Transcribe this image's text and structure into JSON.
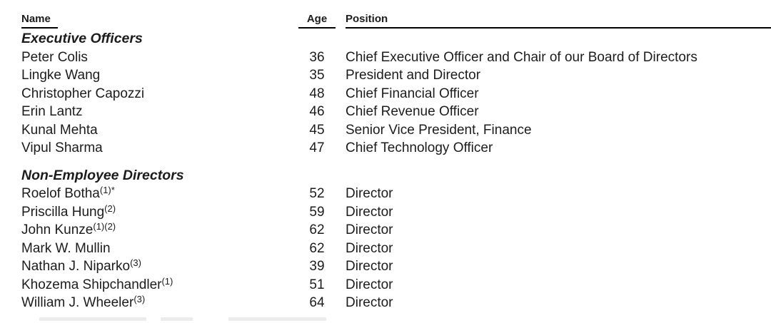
{
  "colors": {
    "text": "#1c1c1c",
    "rule": "#000000",
    "background": "#ffffff"
  },
  "table": {
    "columns": {
      "name": "Name",
      "age": "Age",
      "position": "Position"
    },
    "sections": [
      {
        "title": "Executive Officers",
        "rows": [
          {
            "name": "Peter Colis",
            "sup": "",
            "age": "36",
            "position": "Chief Executive Officer and Chair of our Board of Directors"
          },
          {
            "name": "Lingke Wang",
            "sup": "",
            "age": "35",
            "position": "President and Director"
          },
          {
            "name": "Christopher Capozzi",
            "sup": "",
            "age": "48",
            "position": "Chief Financial Officer"
          },
          {
            "name": "Erin Lantz",
            "sup": "",
            "age": "46",
            "position": "Chief Revenue Officer"
          },
          {
            "name": "Kunal Mehta",
            "sup": "",
            "age": "45",
            "position": "Senior Vice President, Finance"
          },
          {
            "name": "Vipul Sharma",
            "sup": "",
            "age": "47",
            "position": "Chief Technology Officer"
          }
        ]
      },
      {
        "title": "Non-Employee Directors",
        "rows": [
          {
            "name": "Roelof Botha",
            "sup": "(1)*",
            "age": "52",
            "position": "Director"
          },
          {
            "name": "Priscilla Hung",
            "sup": "(2)",
            "age": "59",
            "position": "Director"
          },
          {
            "name": "John Kunze",
            "sup": "(1)(2)",
            "age": "62",
            "position": "Director"
          },
          {
            "name": "Mark W. Mullin",
            "sup": "",
            "age": "62",
            "position": "Director"
          },
          {
            "name": "Nathan J. Niparko",
            "sup": "(3)",
            "age": "39",
            "position": "Director"
          },
          {
            "name": "Khozema Shipchandler",
            "sup": "(1)",
            "age": "51",
            "position": "Director"
          },
          {
            "name": "William J. Wheeler",
            "sup": "(3)",
            "age": "64",
            "position": "Director"
          }
        ]
      }
    ]
  }
}
